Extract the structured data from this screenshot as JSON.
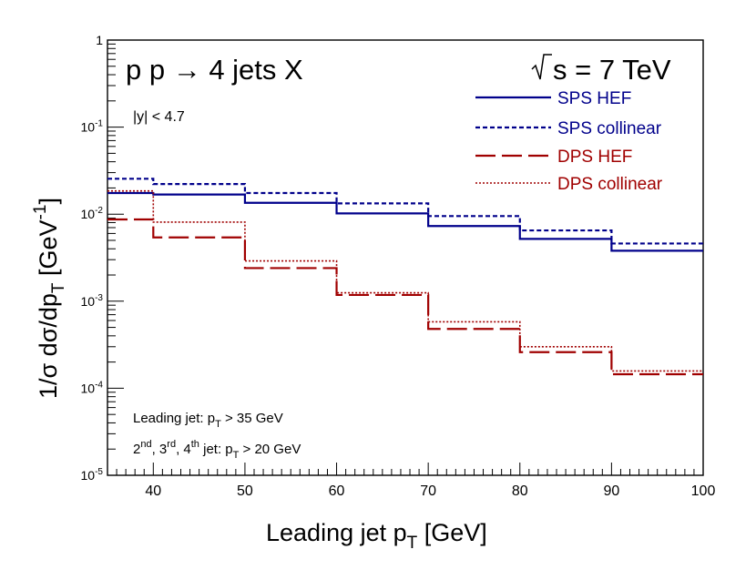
{
  "chart_data": {
    "type": "line",
    "title": "p p → 4 jets X",
    "energy_label": "√s = 7 TeV",
    "cut_label": "|y| < 4.7",
    "xlabel": "Leading jet p_T   [GeV]",
    "ylabel": "1/σ  dσ/dp_T   [GeV^-1]",
    "x_ticks": [
      "40",
      "50",
      "60",
      "70",
      "80",
      "90",
      "100"
    ],
    "y_ticks": [
      "10^-5",
      "10^-4",
      "10^-3",
      "10^-2",
      "10^-1",
      "1"
    ],
    "xlim": [
      35,
      100
    ],
    "ylim": [
      1e-05,
      1
    ],
    "yscale": "log",
    "bin_edges": [
      35,
      40,
      50,
      60,
      70,
      80,
      90,
      100
    ],
    "series": [
      {
        "name": "SPS HEF",
        "color": "#00008b",
        "style": "solid",
        "values": [
          0.0175,
          0.0168,
          0.0135,
          0.0102,
          0.0073,
          0.0052,
          0.0038
        ]
      },
      {
        "name": "SPS collinear",
        "color": "#00008b",
        "style": "dashed",
        "values": [
          0.0255,
          0.0222,
          0.0175,
          0.0133,
          0.0095,
          0.0065,
          0.0046
        ]
      },
      {
        "name": "DPS HEF",
        "color": "#a00000",
        "style": "longdash",
        "values": [
          0.0087,
          0.0054,
          0.0024,
          0.00118,
          0.00048,
          0.00026,
          0.000145
        ]
      },
      {
        "name": "DPS collinear",
        "color": "#a00000",
        "style": "dotted",
        "values": [
          0.0185,
          0.0081,
          0.0029,
          0.00125,
          0.00058,
          0.0003,
          0.000158
        ]
      }
    ],
    "annotations": {
      "leading_jet": "Leading jet: p_T > 35 GeV",
      "other_jets": "2^nd, 3^rd, 4^th jet: p_T > 20 GeV"
    }
  }
}
